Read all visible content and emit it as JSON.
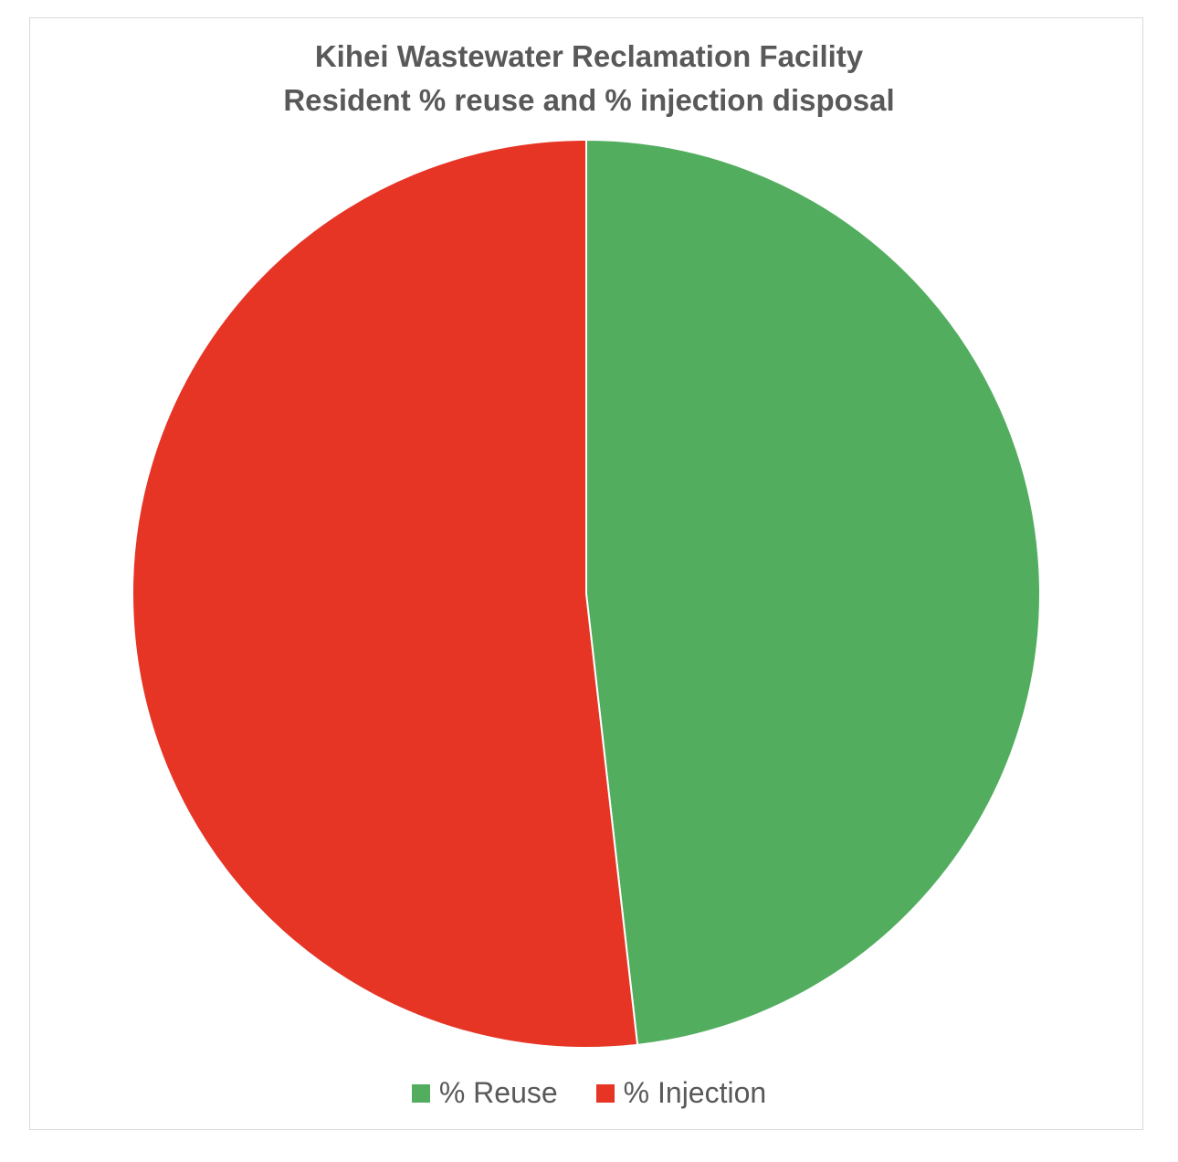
{
  "chart_data": {
    "type": "pie",
    "title_lines": [
      "Kihei Wastewater Reclamation Facility",
      "Resident % reuse and % injection disposal"
    ],
    "slices": [
      {
        "name": "% Reuse",
        "value": 48.2,
        "color": "#52ad5f"
      },
      {
        "name": "% Injection",
        "value": 51.8,
        "color": "#e63425"
      }
    ],
    "start_angle_deg": 0,
    "direction": "clockwise",
    "legend_position": "bottom"
  }
}
